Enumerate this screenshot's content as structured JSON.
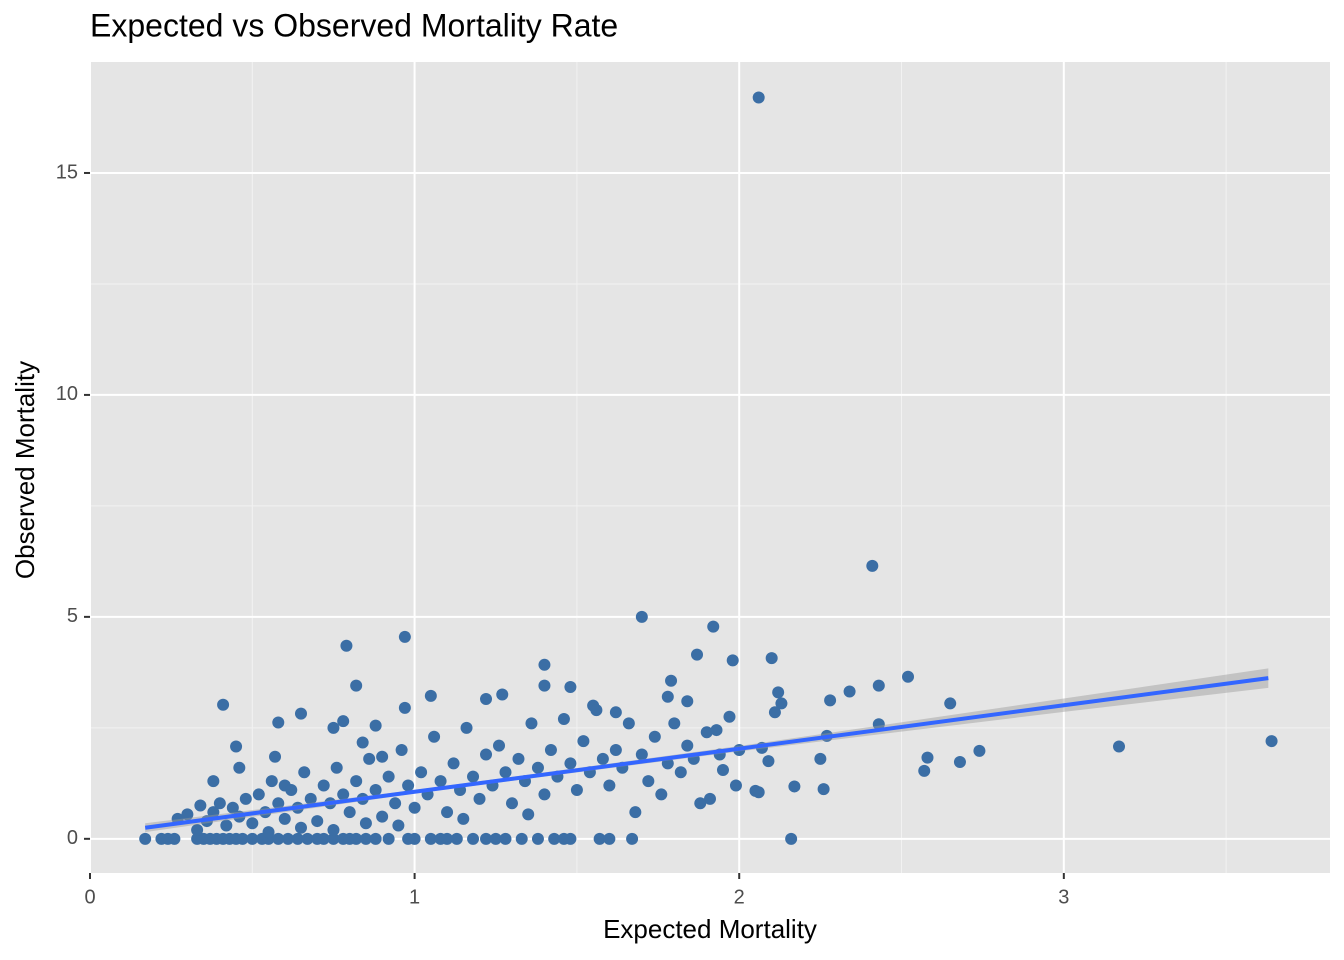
{
  "chart_data": {
    "type": "scatter",
    "title": "Expected vs Observed Mortality Rate",
    "x_label": "Expected Mortality",
    "y_label": "Observed Mortality",
    "xlim": [
      0,
      3.82
    ],
    "ylim": [
      -0.77,
      17.5
    ],
    "xticks": [
      0,
      1,
      2,
      3
    ],
    "yticks": [
      0,
      5,
      10,
      15
    ],
    "x_minor_grid": [
      0.5,
      1.5,
      2.5,
      3.5
    ],
    "y_minor_grid": [
      2.5,
      7.5,
      12.5
    ],
    "grid": true,
    "points": {
      "color": "#3b6ea5",
      "x": [
        2.06,
        2.41,
        1.7,
        1.92,
        0.97,
        0.79,
        1.87,
        2.1,
        1.98,
        1.4,
        2.52,
        1.79,
        0.82,
        1.4,
        1.48,
        2.43,
        2.34,
        2.12,
        1.78,
        1.22,
        2.28,
        2.65,
        0.41,
        1.27,
        1.05,
        0.97,
        1.62,
        2.13,
        2.11,
        0.65,
        1.55,
        1.84,
        3.17,
        3.64,
        2.74,
        2.68,
        2.58,
        2.57,
        2.43,
        2.27,
        2.25,
        2.26,
        2.17,
        2.16,
        2.06,
        2.05,
        2.07,
        2.09,
        1.99,
        2.0,
        1.97,
        1.93,
        1.95,
        1.91,
        1.88,
        0.45,
        0.46,
        0.38,
        0.58,
        0.6,
        0.57,
        0.75,
        0.78,
        0.84,
        0.88,
        0.9,
        0.17,
        0.22,
        0.24,
        0.26,
        0.33,
        0.35,
        0.37,
        0.39,
        0.41,
        0.43,
        0.45,
        0.47,
        0.5,
        0.53,
        0.55,
        0.58,
        0.61,
        0.64,
        0.67,
        0.7,
        0.72,
        0.75,
        0.78,
        0.8,
        0.82,
        0.85,
        0.88,
        0.92,
        0.98,
        1.0,
        1.05,
        1.08,
        1.1,
        1.13,
        1.18,
        1.22,
        1.25,
        1.28,
        1.33,
        1.38,
        1.43,
        1.46,
        1.48,
        1.57,
        1.6,
        1.67,
        0.27,
        0.3,
        0.34,
        0.36,
        0.38,
        0.4,
        0.42,
        0.44,
        0.46,
        0.48,
        0.5,
        0.52,
        0.54,
        0.56,
        0.58,
        0.6,
        0.62,
        0.64,
        0.66,
        0.68,
        0.7,
        0.72,
        0.74,
        0.76,
        0.78,
        0.8,
        0.82,
        0.84,
        0.86,
        0.88,
        0.9,
        0.92,
        0.94,
        0.96,
        0.98,
        1.0,
        1.02,
        1.04,
        1.06,
        1.08,
        1.1,
        1.12,
        1.14,
        1.16,
        1.18,
        1.2,
        1.22,
        1.24,
        1.26,
        1.28,
        1.3,
        1.32,
        1.34,
        1.36,
        1.38,
        1.4,
        1.42,
        1.44,
        1.46,
        1.48,
        1.5,
        1.52,
        1.54,
        1.56,
        1.58,
        1.6,
        1.62,
        1.64,
        1.66,
        1.68,
        1.7,
        1.72,
        1.74,
        1.76,
        1.78,
        1.8,
        1.82,
        1.84,
        1.86,
        1.9,
        1.94,
        0.33,
        0.55,
        0.75,
        0.95,
        1.15,
        1.35,
        0.65,
        0.85
      ],
      "y": [
        16.7,
        6.15,
        5.0,
        4.78,
        4.55,
        4.35,
        4.15,
        4.07,
        4.02,
        3.92,
        3.65,
        3.56,
        3.45,
        3.45,
        3.42,
        3.45,
        3.32,
        3.3,
        3.2,
        3.15,
        3.12,
        3.05,
        3.02,
        3.25,
        3.22,
        2.95,
        2.85,
        3.05,
        2.85,
        2.82,
        3.0,
        3.1,
        2.08,
        2.2,
        1.98,
        1.73,
        1.83,
        1.53,
        2.58,
        2.32,
        1.8,
        1.12,
        1.18,
        0,
        1.05,
        1.08,
        2.05,
        1.75,
        1.2,
        2.0,
        2.75,
        2.45,
        1.55,
        0.9,
        0.8,
        2.08,
        1.6,
        1.3,
        2.62,
        1.2,
        1.85,
        2.5,
        2.65,
        2.17,
        2.55,
        1.85,
        0,
        0,
        0,
        0,
        0,
        0,
        0,
        0,
        0,
        0,
        0,
        0,
        0,
        0,
        0,
        0,
        0,
        0,
        0,
        0,
        0,
        0,
        0,
        0,
        0,
        0,
        0,
        0,
        0,
        0,
        0,
        0,
        0,
        0,
        0,
        0,
        0,
        0,
        0,
        0,
        0,
        0,
        0,
        0,
        0,
        0,
        0.45,
        0.55,
        0.75,
        0.4,
        0.6,
        0.8,
        0.3,
        0.7,
        0.5,
        0.9,
        0.35,
        1.0,
        0.6,
        1.3,
        0.8,
        0.45,
        1.1,
        0.7,
        1.5,
        0.9,
        0.4,
        1.2,
        0.8,
        1.6,
        1.0,
        0.6,
        1.3,
        0.9,
        1.8,
        1.1,
        0.5,
        1.4,
        0.8,
        2.0,
        1.2,
        0.7,
        1.5,
        1.0,
        2.3,
        1.3,
        0.6,
        1.7,
        1.1,
        2.5,
        1.4,
        0.9,
        1.9,
        1.2,
        2.1,
        1.5,
        0.8,
        1.8,
        1.3,
        2.6,
        1.6,
        1.0,
        2.0,
        1.4,
        2.7,
        1.7,
        1.1,
        2.2,
        1.5,
        2.9,
        1.8,
        1.2,
        2.0,
        1.6,
        2.6,
        0.6,
        1.9,
        1.3,
        2.3,
        1.0,
        1.7,
        2.6,
        1.5,
        2.1,
        1.8,
        2.4,
        1.9,
        0.2,
        0.15,
        0.2,
        0.3,
        0.45,
        0.55,
        0.25,
        0.35
      ]
    },
    "fit": {
      "color": "#3366ff",
      "band_color": "#999999",
      "x": [
        0.17,
        1.0,
        2.0,
        3.0,
        3.63
      ],
      "y": [
        0.25,
        1.06,
        2.03,
        3.01,
        3.62
      ],
      "lower": [
        0.15,
        1.02,
        1.97,
        2.86,
        3.4
      ],
      "upper": [
        0.35,
        1.1,
        2.09,
        3.16,
        3.84
      ]
    }
  }
}
